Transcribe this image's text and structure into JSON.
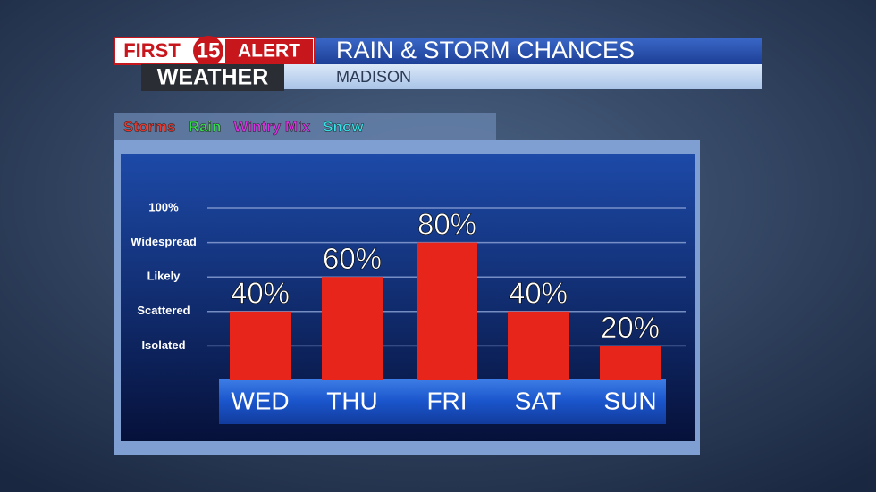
{
  "header": {
    "logo_left": "FIRST",
    "logo_number": "15",
    "logo_right": "ALERT",
    "logo_bottom": "WEATHER"
  },
  "chart_data": {
    "type": "bar",
    "title": "RAIN & STORM CHANCES",
    "subtitle": "MADISON",
    "legend": [
      {
        "name": "Storms",
        "color": "#f0352b"
      },
      {
        "name": "Rain",
        "color": "#35e04a"
      },
      {
        "name": "Wintry Mix",
        "color": "#e02ee6"
      },
      {
        "name": "Snow",
        "color": "#36e0e6"
      }
    ],
    "categories": [
      "WED",
      "THU",
      "FRI",
      "SAT",
      "SUN"
    ],
    "series": [
      {
        "color": "#e8251b",
        "values": [
          40,
          60,
          80,
          40,
          20
        ],
        "value_labels": [
          "40%",
          "60%",
          "80%",
          "40%",
          "20%"
        ]
      }
    ],
    "ylim": [
      0,
      100
    ],
    "yticks": [
      {
        "value": 20,
        "label": "Isolated"
      },
      {
        "value": 40,
        "label": "Scattered"
      },
      {
        "value": 60,
        "label": "Likely"
      },
      {
        "value": 80,
        "label": "Widespread"
      },
      {
        "value": 100,
        "label": "100%"
      }
    ],
    "grid": true
  }
}
